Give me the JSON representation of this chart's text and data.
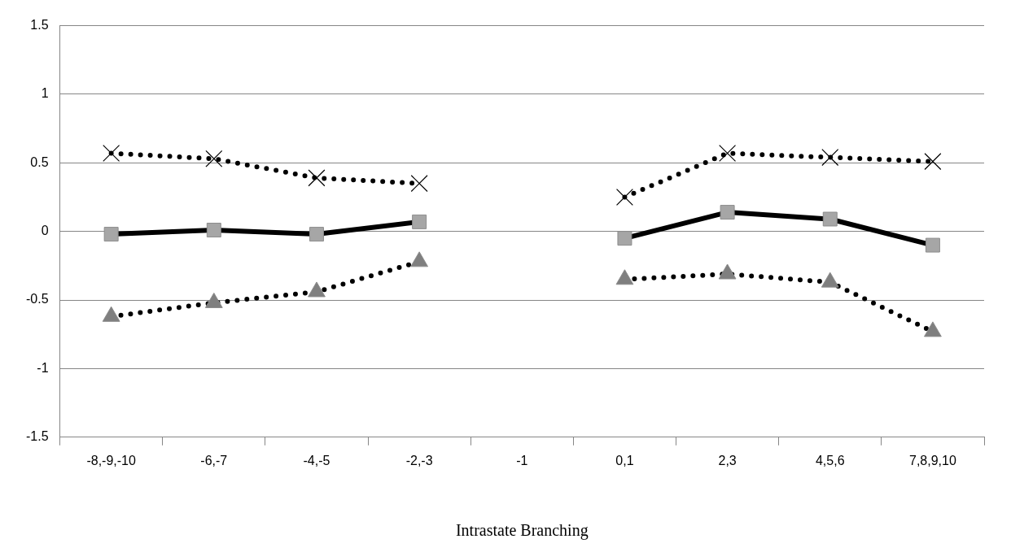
{
  "chart_data": {
    "type": "line",
    "xlabel": "Intrastate Branching",
    "categories": [
      "-8,-9,-10",
      "-6,-7",
      "-4,-5",
      "-2,-3",
      "-1",
      "0,1",
      "2,3",
      "4,5,6",
      "7,8,9,10"
    ],
    "series": [
      {
        "color": "#000000",
        "marker": "cross",
        "line_style": "dotted",
        "values": [
          0.57,
          0.53,
          0.39,
          0.35,
          null,
          0.25,
          0.57,
          0.54,
          0.51
        ]
      },
      {
        "color": "#a6a6a6",
        "marker": "square",
        "line_style": "solid",
        "values": [
          -0.02,
          0.01,
          -0.02,
          0.07,
          null,
          -0.05,
          0.14,
          0.09,
          -0.1
        ]
      },
      {
        "color": "#7f7f7f",
        "marker": "triangle",
        "line_style": "dotted",
        "values": [
          -0.62,
          -0.52,
          -0.44,
          -0.22,
          null,
          -0.35,
          -0.31,
          -0.37,
          -0.73
        ]
      }
    ],
    "ylim": [
      -1.5,
      1.5
    ],
    "yticks": [
      -1.5,
      -1,
      -0.5,
      0,
      0.5,
      1,
      1.5
    ],
    "grid": "y",
    "legend": false
  }
}
